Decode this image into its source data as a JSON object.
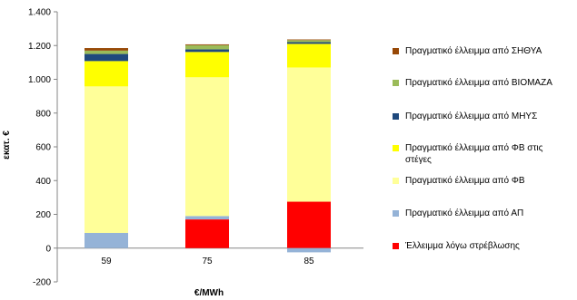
{
  "chart_data": {
    "type": "bar",
    "stacked": true,
    "categories": [
      "59",
      "75",
      "85"
    ],
    "xlabel": "€/MWh",
    "ylabel": "εκατ. €",
    "ylim": [
      -200,
      1400
    ],
    "yticks": [
      -200,
      0,
      200,
      400,
      600,
      800,
      1000,
      1200,
      1400
    ],
    "ytick_labels": [
      "-200",
      "0",
      "200",
      "400",
      "600",
      "800",
      "1.000",
      "1.200",
      "1.400"
    ],
    "legend_position": "right",
    "grid": false,
    "series": [
      {
        "name": "Έλλειμμα λόγω στρέβλωσης",
        "color": "#ff0000",
        "values": [
          0,
          170,
          275
        ]
      },
      {
        "name": "Πραγματικό έλλειμμα από ΑΠ",
        "color": "#95b3d7",
        "values": [
          90,
          20,
          -25
        ]
      },
      {
        "name": "Πραγματικό έλλειμμα από ΦΒ",
        "color": "#ffff99",
        "values": [
          868,
          822,
          795
        ]
      },
      {
        "name": "Πραγματικό έλλειμμα από ΦΒ στις στέγες",
        "color": "#ffff00",
        "values": [
          150,
          150,
          140
        ]
      },
      {
        "name": "Πραγματικό έλλειμμα από ΜΗΥΣ",
        "color": "#1f497d",
        "values": [
          42,
          15,
          10
        ]
      },
      {
        "name": "Πραγματικό έλλειμμα από ΒΙΟΜΑΖΑ",
        "color": "#9bbb59",
        "values": [
          20,
          25,
          12
        ]
      },
      {
        "name": "Πραγματικό έλλειμμα από ΣΗΘΥΑ",
        "color": "#974806",
        "values": [
          15,
          5,
          4
        ]
      }
    ]
  }
}
